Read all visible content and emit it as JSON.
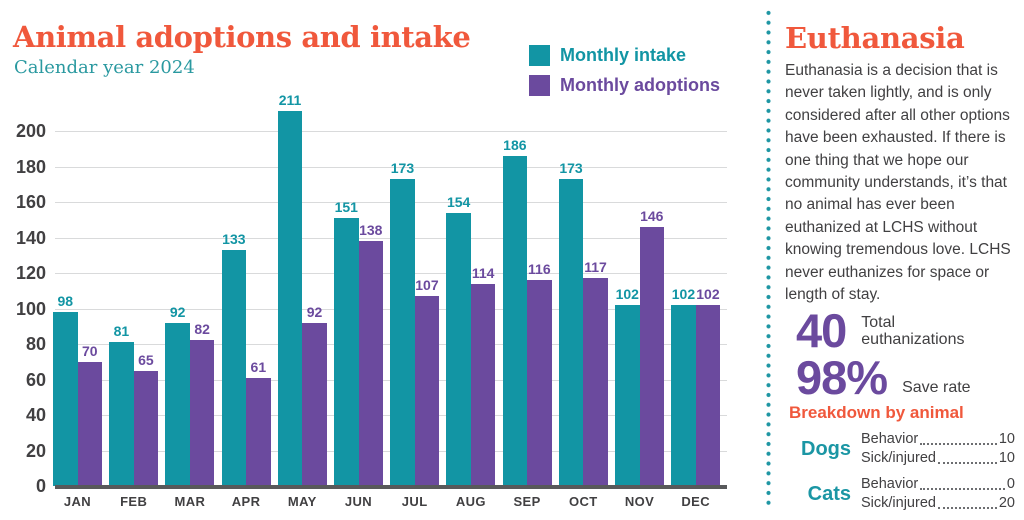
{
  "header": {
    "title": "Animal adoptions and intake",
    "subtitle": "Calendar year 2024"
  },
  "legend": [
    {
      "label": "Monthly intake",
      "color": "#1295a4"
    },
    {
      "label": "Monthly adoptions",
      "color": "#6b4a9e"
    }
  ],
  "chart_data": {
    "type": "bar",
    "title": "Animal adoptions and intake",
    "subtitle": "Calendar year 2024",
    "categories": [
      "JAN",
      "FEB",
      "MAR",
      "APR",
      "MAY",
      "JUN",
      "JUL",
      "AUG",
      "SEP",
      "OCT",
      "NOV",
      "DEC"
    ],
    "series": [
      {
        "name": "Monthly intake",
        "color": "#1295a4",
        "values": [
          98,
          81,
          92,
          133,
          211,
          151,
          173,
          154,
          186,
          173,
          102,
          102
        ]
      },
      {
        "name": "Monthly adoptions",
        "color": "#6b4a9e",
        "values": [
          70,
          65,
          82,
          61,
          92,
          138,
          107,
          114,
          116,
          117,
          146,
          102
        ]
      }
    ],
    "y_ticks": [
      0,
      20,
      40,
      60,
      80,
      100,
      120,
      140,
      160,
      180,
      200
    ],
    "ylim": [
      0,
      200
    ],
    "grid": true,
    "legend_position": "top-right",
    "value_labels": true
  },
  "sidebar": {
    "title": "Euthanasia",
    "body": "Euthanasia is a decision that is never taken lightly, and is only considered after all other options have been exhausted. If there is one thing that we hope our community understands, it’s that no animal has ever been euthanized at LCHS without knowing tremendous love. LCHS never euthanizes for space or length of stay.",
    "stats": [
      {
        "value": "40",
        "label": "Total euthanizations"
      },
      {
        "value": "98%",
        "label": "Save rate"
      }
    ],
    "breakdown": {
      "heading": "Breakdown by animal",
      "groups": [
        {
          "animal": "Dogs",
          "rows": [
            {
              "label": "Behavior",
              "value": "10"
            },
            {
              "label": "Sick/injured",
              "value": "10"
            }
          ]
        },
        {
          "animal": "Cats",
          "rows": [
            {
              "label": "Behavior",
              "value": "0"
            },
            {
              "label": "Sick/injured",
              "value": "20"
            }
          ]
        }
      ]
    }
  },
  "colors": {
    "teal": "#1295a4",
    "purple": "#6b4a9e",
    "orange": "#f0583c",
    "text": "#414042",
    "axis": "#58595b",
    "gridline": "#d9dadb"
  }
}
